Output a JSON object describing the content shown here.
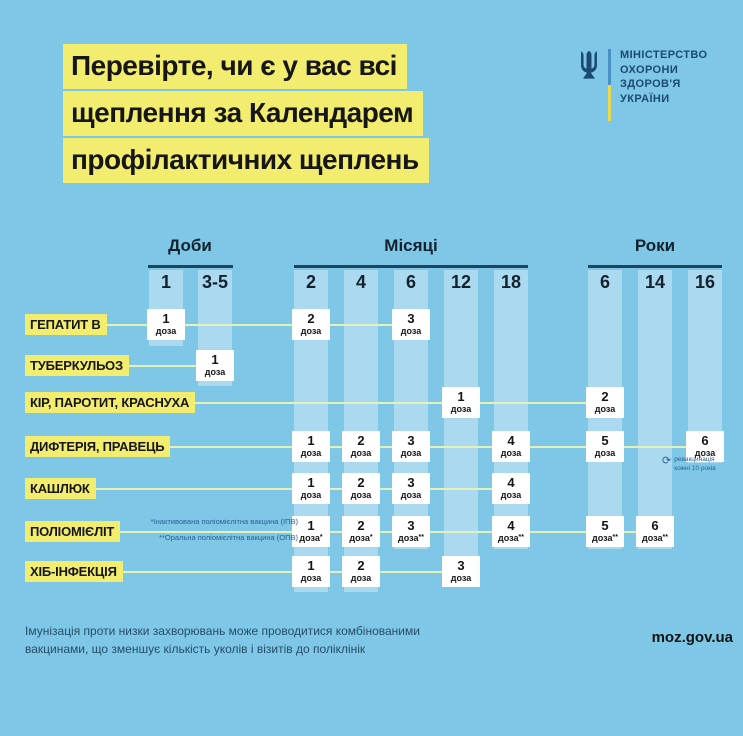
{
  "title": {
    "lines": [
      "Перевірте, чи є у вас всі",
      "щеплення за Календарем",
      "профілактичних щеплень"
    ]
  },
  "ministry": {
    "logo_icon": "trident-icon",
    "name_lines": [
      "МІНІСТЕРСТВО",
      "ОХОРОНИ",
      "ЗДОРОВ'Я",
      "УКРАЇНИ"
    ]
  },
  "chart_data": {
    "type": "table",
    "title": "Календар профілактичних щеплень",
    "dose_unit": "доза",
    "column_groups": [
      {
        "label": "Доби",
        "columns": [
          "1",
          "3-5"
        ]
      },
      {
        "label": "Місяці",
        "columns": [
          "2",
          "4",
          "6",
          "12",
          "18"
        ]
      },
      {
        "label": "Роки",
        "columns": [
          "6",
          "14",
          "16"
        ]
      }
    ],
    "rows": [
      {
        "label": "ГЕПАТИТ В",
        "doses": [
          {
            "group": 0,
            "col": 0,
            "n": "1"
          },
          {
            "group": 1,
            "col": 0,
            "n": "2"
          },
          {
            "group": 1,
            "col": 2,
            "n": "3"
          }
        ]
      },
      {
        "label": "ТУБЕРКУЛЬОЗ",
        "doses": [
          {
            "group": 0,
            "col": 1,
            "n": "1"
          }
        ]
      },
      {
        "label": "КІР, ПАРОТИТ, КРАСНУХА",
        "doses": [
          {
            "group": 1,
            "col": 3,
            "n": "1"
          },
          {
            "group": 2,
            "col": 0,
            "n": "2"
          }
        ]
      },
      {
        "label": "ДИФТЕРІЯ, ПРАВЕЦЬ",
        "doses": [
          {
            "group": 1,
            "col": 0,
            "n": "1"
          },
          {
            "group": 1,
            "col": 1,
            "n": "2"
          },
          {
            "group": 1,
            "col": 2,
            "n": "3"
          },
          {
            "group": 1,
            "col": 4,
            "n": "4"
          },
          {
            "group": 2,
            "col": 0,
            "n": "5"
          },
          {
            "group": 2,
            "col": 2,
            "n": "6"
          }
        ],
        "note": {
          "icon": "refresh-icon",
          "lines": [
            "ревакцинація",
            "кожні 10 років"
          ]
        }
      },
      {
        "label": "КАШЛЮК",
        "doses": [
          {
            "group": 1,
            "col": 0,
            "n": "1"
          },
          {
            "group": 1,
            "col": 1,
            "n": "2"
          },
          {
            "group": 1,
            "col": 2,
            "n": "3"
          },
          {
            "group": 1,
            "col": 4,
            "n": "4"
          }
        ]
      },
      {
        "label": "ПОЛІОМІЄЛІТ",
        "doses": [
          {
            "group": 1,
            "col": 0,
            "n": "1",
            "mark": "*"
          },
          {
            "group": 1,
            "col": 1,
            "n": "2",
            "mark": "*"
          },
          {
            "group": 1,
            "col": 2,
            "n": "3",
            "mark": "**"
          },
          {
            "group": 1,
            "col": 4,
            "n": "4",
            "mark": "**"
          },
          {
            "group": 2,
            "col": 0,
            "n": "5",
            "mark": "**"
          },
          {
            "group": 2,
            "col": 1,
            "n": "6",
            "mark": "**"
          }
        ],
        "footnotes": [
          "*Інактивована поліомієлітна вакцина (ІПВ)",
          "**Оральна поліомієлітна вакцина (ОПВ)"
        ]
      },
      {
        "label": "ХІБ-ІНФЕКЦІЯ",
        "doses": [
          {
            "group": 1,
            "col": 0,
            "n": "1"
          },
          {
            "group": 1,
            "col": 1,
            "n": "2"
          },
          {
            "group": 1,
            "col": 3,
            "n": "3"
          }
        ]
      }
    ]
  },
  "footer": {
    "lines": [
      "Імунізація проти низки захворювань може проводитися комбінованими",
      "вакцинами, що зменшує кількість уколів і візитів до поліклінік"
    ],
    "site": "moz.gov.ua"
  },
  "colors": {
    "background": "#7ec7e6",
    "column_stripe": "#abd9ef",
    "highlight_yellow": "#f2ed6f",
    "row_line": "#e4f2b8",
    "group_line_navy": "#21445e",
    "ministry_navy": "#1c4a70",
    "note_blue": "#2b6195",
    "dose_box": "#ffffff",
    "text_dark": "#161616"
  }
}
